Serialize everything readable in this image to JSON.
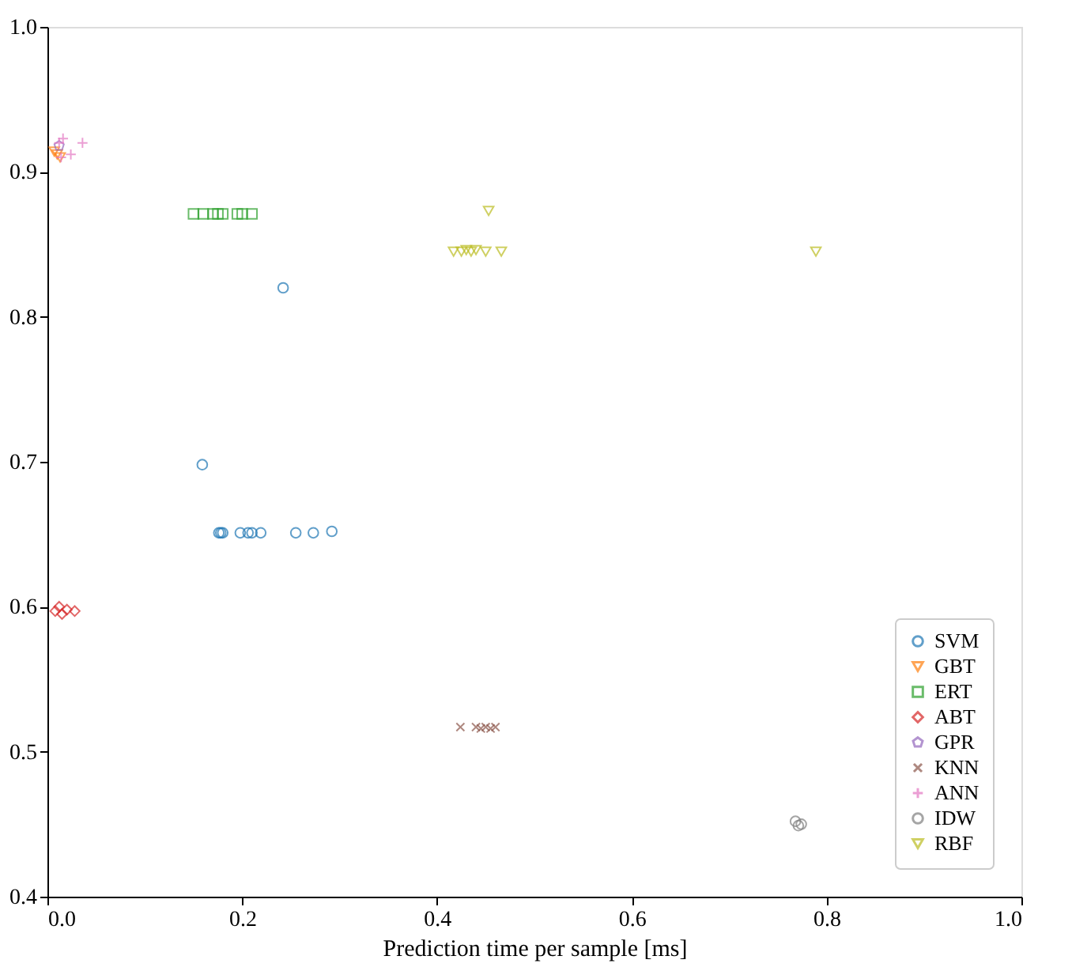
{
  "chart_data": {
    "type": "scatter",
    "xlabel": "Prediction time per sample [ms]",
    "xlim": [
      0,
      1
    ],
    "ylim": [
      0.4,
      1.0
    ],
    "xticks": [
      {
        "value": 0,
        "label": "0.0"
      },
      0.2,
      0.4,
      0.6,
      0.8,
      {
        "value": 1,
        "label": "1.0"
      }
    ],
    "yticks": [
      0.4,
      0.5,
      0.6,
      0.7,
      0.8,
      0.9,
      {
        "value": 1,
        "label": "1.0"
      }
    ],
    "grid": false,
    "legend": "bottom right",
    "series": [
      {
        "name": "SVM",
        "color": "#1f77b4",
        "marker": "circle",
        "x": [
          0.242,
          0.159,
          0.176,
          0.178,
          0.18,
          0.198,
          0.206,
          0.21,
          0.219,
          0.255,
          0.273,
          0.292
        ],
        "values": [
          0.82,
          0.698,
          0.651,
          0.651,
          0.651,
          0.651,
          0.651,
          0.651,
          0.651,
          0.651,
          0.651,
          0.652
        ]
      },
      {
        "name": "GBT",
        "color": "#ff7f0e",
        "marker": "triangle-down",
        "x": [
          0.007,
          0.01,
          0.013
        ],
        "values": [
          0.914,
          0.912,
          0.91
        ]
      },
      {
        "name": "ERT",
        "color": "#2ca02c",
        "marker": "square",
        "x": [
          0.15,
          0.16,
          0.17,
          0.175,
          0.18,
          0.195,
          0.2,
          0.21
        ],
        "values": [
          0.871,
          0.871,
          0.871,
          0.871,
          0.871,
          0.871,
          0.871,
          0.871
        ]
      },
      {
        "name": "ABT",
        "color": "#d62728",
        "marker": "diamond",
        "x": [
          0.008,
          0.012,
          0.015,
          0.02,
          0.028
        ],
        "values": [
          0.597,
          0.6,
          0.595,
          0.598,
          0.597
        ]
      },
      {
        "name": "GPR",
        "color": "#9467bd",
        "x": [
          0.012
        ],
        "values": [
          0.918
        ]
      },
      {
        "name": "KNN",
        "color": "#8c564b",
        "marker": "x",
        "x": [
          0.424,
          0.44,
          0.445,
          0.45,
          0.455,
          0.46
        ],
        "values": [
          0.517,
          0.517,
          0.516,
          0.517,
          0.516,
          0.517
        ]
      },
      {
        "name": "ANN",
        "color": "#e377c2",
        "marker": "cross",
        "x": [
          0.012,
          0.014,
          0.016,
          0.024,
          0.036
        ],
        "values": [
          0.92,
          0.91,
          0.923,
          0.912,
          0.92
        ]
      },
      {
        "name": "IDW",
        "color": "#7f7f7f",
        "marker": "circle",
        "x": [
          0.768,
          0.771,
          0.774
        ],
        "values": [
          0.452,
          0.449,
          0.45
        ]
      },
      {
        "name": "RBF",
        "color": "#bcbd22",
        "marker": "triangle-down",
        "x": [
          0.453,
          0.417,
          0.425,
          0.43,
          0.435,
          0.44,
          0.45,
          0.466,
          0.789
        ],
        "values": [
          0.873,
          0.845,
          0.845,
          0.846,
          0.845,
          0.846,
          0.845,
          0.845,
          0.845
        ]
      }
    ]
  }
}
